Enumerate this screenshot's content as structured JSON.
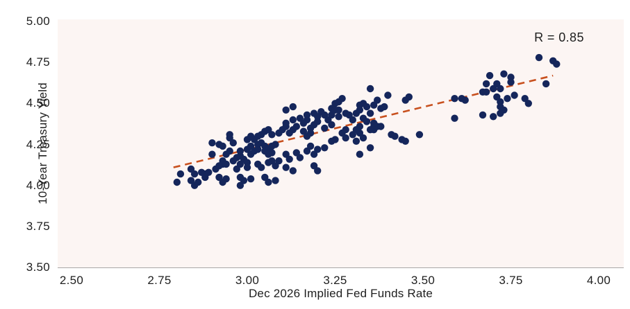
{
  "chart_data": {
    "type": "scatter",
    "title": "",
    "xlabel": "Dec 2026 Implied Fed Funds Rate",
    "ylabel": "10-Year Treasury Yield",
    "annotation": "R = 0.85",
    "xlim": [
      2.5,
      4.0
    ],
    "ylim": [
      3.5,
      5.0
    ],
    "grid": false,
    "legend": "none",
    "x_tick_values": [
      2.5,
      2.75,
      3.0,
      3.25,
      3.5,
      3.75,
      4.0
    ],
    "x_tick_labels": [
      "2.50",
      "2.75",
      "3.00",
      "3.25",
      "3.50",
      "3.75",
      "4.00"
    ],
    "y_tick_values": [
      3.5,
      3.75,
      4.0,
      4.25,
      4.5,
      4.75,
      5.0
    ],
    "y_tick_labels": [
      "3.50",
      "3.75",
      "4.00",
      "4.25",
      "4.50",
      "4.75",
      "5.00"
    ],
    "trend_line": {
      "style": "dashed",
      "from": [
        2.79,
        4.11
      ],
      "to": [
        3.87,
        4.67
      ]
    },
    "colors": {
      "point": "#15265b",
      "trend": "#c8501e",
      "plot_bg": "#fcf5f3",
      "axis_line": "#a9a6a6",
      "text": "#1e1e1e"
    },
    "points": [
      [
        2.8,
        4.02
      ],
      [
        2.81,
        4.07
      ],
      [
        2.84,
        4.1
      ],
      [
        2.85,
        4.07
      ],
      [
        2.84,
        4.03
      ],
      [
        2.85,
        4.0
      ],
      [
        2.86,
        4.02
      ],
      [
        2.87,
        4.08
      ],
      [
        2.88,
        4.05
      ],
      [
        2.88,
        4.07
      ],
      [
        2.89,
        4.08
      ],
      [
        2.9,
        4.26
      ],
      [
        2.9,
        4.19
      ],
      [
        2.91,
        4.1
      ],
      [
        2.92,
        4.25
      ],
      [
        2.93,
        4.24
      ],
      [
        2.95,
        4.29
      ],
      [
        2.95,
        4.31
      ],
      [
        2.96,
        4.26
      ],
      [
        2.94,
        4.19
      ],
      [
        2.95,
        4.21
      ],
      [
        2.93,
        4.15
      ],
      [
        2.93,
        4.13
      ],
      [
        2.92,
        4.12
      ],
      [
        2.94,
        4.13
      ],
      [
        2.96,
        4.15
      ],
      [
        2.97,
        4.17
      ],
      [
        2.98,
        4.18
      ],
      [
        2.98,
        4.21
      ],
      [
        3.0,
        4.22
      ],
      [
        2.99,
        4.16
      ],
      [
        3.0,
        4.14
      ],
      [
        2.98,
        4.13
      ],
      [
        2.97,
        4.1
      ],
      [
        3.0,
        4.11
      ],
      [
        2.92,
        4.05
      ],
      [
        2.93,
        4.02
      ],
      [
        2.94,
        4.04
      ],
      [
        2.98,
        4.05
      ],
      [
        2.99,
        4.03
      ],
      [
        2.98,
        4.0
      ],
      [
        3.01,
        4.19
      ],
      [
        3.02,
        4.21
      ],
      [
        3.03,
        4.22
      ],
      [
        3.04,
        4.31
      ],
      [
        3.05,
        4.33
      ],
      [
        3.06,
        4.34
      ],
      [
        3.07,
        4.31
      ],
      [
        3.02,
        4.28
      ],
      [
        3.04,
        4.26
      ],
      [
        3.05,
        4.24
      ],
      [
        3.06,
        4.22
      ],
      [
        3.07,
        4.2
      ],
      [
        3.03,
        4.13
      ],
      [
        3.04,
        4.11
      ],
      [
        3.06,
        4.14
      ],
      [
        3.07,
        4.15
      ],
      [
        3.01,
        4.04
      ],
      [
        3.05,
        4.05
      ],
      [
        3.06,
        4.02
      ],
      [
        3.08,
        4.03
      ],
      [
        3.01,
        4.24
      ],
      [
        3.0,
        4.28
      ],
      [
        3.01,
        4.3
      ],
      [
        3.03,
        4.3
      ],
      [
        3.03,
        4.25
      ],
      [
        3.05,
        4.21
      ],
      [
        3.06,
        4.19
      ],
      [
        3.07,
        4.24
      ],
      [
        3.09,
        4.32
      ],
      [
        3.1,
        4.34
      ],
      [
        3.11,
        4.36
      ],
      [
        3.13,
        4.34
      ],
      [
        3.14,
        4.36
      ],
      [
        3.16,
        4.33
      ],
      [
        3.17,
        4.3
      ],
      [
        3.18,
        4.32
      ],
      [
        3.08,
        4.25
      ],
      [
        3.09,
        4.15
      ],
      [
        3.08,
        4.12
      ],
      [
        3.11,
        4.19
      ],
      [
        3.12,
        4.16
      ],
      [
        3.11,
        4.11
      ],
      [
        3.13,
        4.09
      ],
      [
        3.14,
        4.2
      ],
      [
        3.15,
        4.17
      ],
      [
        3.17,
        4.21
      ],
      [
        3.19,
        4.19
      ],
      [
        3.2,
        4.22
      ],
      [
        3.19,
        4.12
      ],
      [
        3.2,
        4.09
      ],
      [
        3.18,
        4.24
      ],
      [
        3.22,
        4.23
      ],
      [
        3.24,
        4.27
      ],
      [
        3.25,
        4.28
      ],
      [
        3.27,
        4.32
      ],
      [
        3.28,
        4.29
      ],
      [
        3.3,
        4.31
      ],
      [
        3.31,
        4.27
      ],
      [
        3.32,
        4.32
      ],
      [
        3.33,
        4.29
      ],
      [
        3.36,
        4.36
      ],
      [
        3.36,
        4.34
      ],
      [
        3.37,
        4.36
      ],
      [
        3.41,
        4.31
      ],
      [
        3.42,
        4.3
      ],
      [
        3.44,
        4.28
      ],
      [
        3.45,
        4.27
      ],
      [
        3.49,
        4.31
      ],
      [
        3.32,
        4.19
      ],
      [
        3.35,
        4.23
      ],
      [
        3.11,
        4.46
      ],
      [
        3.13,
        4.48
      ],
      [
        3.11,
        4.38
      ],
      [
        3.13,
        4.4
      ],
      [
        3.15,
        4.41
      ],
      [
        3.17,
        4.43
      ],
      [
        3.17,
        4.4
      ],
      [
        3.16,
        4.38
      ],
      [
        3.19,
        4.44
      ],
      [
        3.2,
        4.42
      ],
      [
        3.21,
        4.45
      ],
      [
        3.22,
        4.43
      ],
      [
        3.2,
        4.39
      ],
      [
        3.19,
        4.37
      ],
      [
        3.18,
        4.35
      ],
      [
        3.23,
        4.4
      ],
      [
        3.24,
        4.43
      ],
      [
        3.25,
        4.5
      ],
      [
        3.26,
        4.51
      ],
      [
        3.24,
        4.47
      ],
      [
        3.25,
        4.46
      ],
      [
        3.24,
        4.37
      ],
      [
        3.22,
        4.35
      ],
      [
        3.27,
        4.53
      ],
      [
        3.26,
        4.46
      ],
      [
        3.26,
        4.42
      ],
      [
        3.28,
        4.44
      ],
      [
        3.29,
        4.43
      ],
      [
        3.3,
        4.4
      ],
      [
        3.31,
        4.44
      ],
      [
        3.32,
        4.49
      ],
      [
        3.33,
        4.5
      ],
      [
        3.34,
        4.48
      ],
      [
        3.32,
        4.46
      ],
      [
        3.33,
        4.41
      ],
      [
        3.34,
        4.39
      ],
      [
        3.35,
        4.44
      ],
      [
        3.36,
        4.49
      ],
      [
        3.37,
        4.52
      ],
      [
        3.38,
        4.47
      ],
      [
        3.39,
        4.48
      ],
      [
        3.36,
        4.38
      ],
      [
        3.38,
        4.36
      ],
      [
        3.35,
        4.34
      ],
      [
        3.32,
        4.36
      ],
      [
        3.31,
        4.34
      ],
      [
        3.28,
        4.34
      ],
      [
        3.4,
        4.55
      ],
      [
        3.12,
        4.32
      ],
      [
        3.35,
        4.59
      ],
      [
        3.45,
        4.52
      ],
      [
        3.46,
        4.54
      ],
      [
        3.83,
        4.78
      ],
      [
        3.87,
        4.76
      ],
      [
        3.88,
        4.74
      ],
      [
        3.69,
        4.67
      ],
      [
        3.73,
        4.68
      ],
      [
        3.75,
        4.66
      ],
      [
        3.75,
        4.63
      ],
      [
        3.68,
        4.62
      ],
      [
        3.71,
        4.62
      ],
      [
        3.7,
        4.59
      ],
      [
        3.68,
        4.57
      ],
      [
        3.67,
        4.57
      ],
      [
        3.72,
        4.59
      ],
      [
        3.85,
        4.62
      ],
      [
        3.71,
        4.54
      ],
      [
        3.74,
        4.53
      ],
      [
        3.76,
        4.55
      ],
      [
        3.79,
        4.53
      ],
      [
        3.8,
        4.5
      ],
      [
        3.72,
        4.51
      ],
      [
        3.72,
        4.48
      ],
      [
        3.73,
        4.46
      ],
      [
        3.59,
        4.53
      ],
      [
        3.61,
        4.53
      ],
      [
        3.62,
        4.52
      ],
      [
        3.59,
        4.41
      ],
      [
        3.67,
        4.43
      ],
      [
        3.7,
        4.42
      ],
      [
        3.72,
        4.44
      ]
    ]
  }
}
